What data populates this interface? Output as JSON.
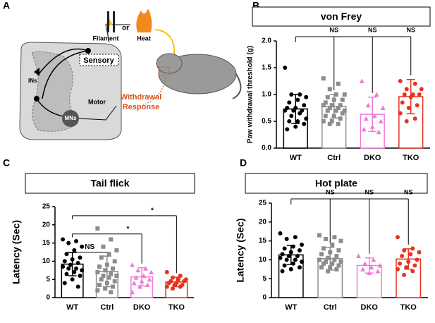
{
  "panel_a": {
    "panel": "A",
    "filament": "Filament",
    "or": "or",
    "heat": "Heat",
    "sensory": "Sensory",
    "ins": "INs",
    "mns": "MNs",
    "motor": "Motor",
    "withdrawal": "Withdrawal",
    "response": "Response"
  },
  "chart_data": [
    {
      "type": "bar",
      "panel": "B",
      "title": "von Frey",
      "ylabel": "Paw withdrawal threshold (g)",
      "categories": [
        "WT",
        "Ctrl",
        "DKO",
        "TKO"
      ],
      "colors": [
        "#000000",
        "#8c8c8c",
        "#f07ad8",
        "#e8321e"
      ],
      "markers": [
        "circle",
        "square",
        "triangle",
        "circle"
      ],
      "values": [
        0.73,
        0.78,
        0.63,
        0.96
      ],
      "errors": [
        0.27,
        0.22,
        0.32,
        0.32
      ],
      "points": [
        [
          1.5,
          1.0,
          1.0,
          0.95,
          0.9,
          0.85,
          0.8,
          0.75,
          0.75,
          0.7,
          0.7,
          0.7,
          0.65,
          0.6,
          0.55,
          0.5,
          0.5,
          0.45,
          0.4,
          0.35
        ],
        [
          1.3,
          1.2,
          1.1,
          1.0,
          1.0,
          0.95,
          0.9,
          0.9,
          0.85,
          0.8,
          0.8,
          0.8,
          0.75,
          0.75,
          0.7,
          0.7,
          0.7,
          0.65,
          0.6,
          0.6,
          0.55,
          0.5,
          0.5,
          0.45,
          0.45
        ],
        [
          1.25,
          1.0,
          0.8,
          0.75,
          0.6,
          0.55,
          0.5,
          0.4,
          0.35,
          0.3
        ],
        [
          1.25,
          1.2,
          1.1,
          1.1,
          1.0,
          1.0,
          1.0,
          0.95,
          0.85,
          0.8,
          0.75,
          0.65,
          0.55,
          0.5
        ]
      ],
      "ylim": [
        0,
        2
      ],
      "yticks": [
        {
          "value": 0,
          "label": "0.0"
        },
        0.5,
        {
          "value": 1,
          "label": "1.0"
        },
        1.5,
        {
          "value": 2,
          "label": "2.0"
        }
      ],
      "bracket_style": "shared",
      "comparisons": [
        {
          "vs": 1,
          "label": "NS"
        },
        {
          "vs": 2,
          "label": "NS"
        },
        {
          "vs": 3,
          "label": "NS"
        }
      ]
    },
    {
      "type": "bar",
      "panel": "C",
      "title": "Tail flick",
      "ylabel": "Latency (Sec)",
      "categories": [
        "WT",
        "Ctrl",
        "DKO",
        "TKO"
      ],
      "colors": [
        "#000000",
        "#8c8c8c",
        "#f07ad8",
        "#e8321e"
      ],
      "markers": [
        "circle",
        "square",
        "triangle",
        "circle"
      ],
      "values": [
        9.2,
        7.2,
        5.7,
        4.3
      ],
      "errors": [
        3.2,
        4.2,
        2.5,
        1.3
      ],
      "points": [
        [
          16,
          15.5,
          15,
          14,
          13,
          12,
          11,
          10.5,
          10,
          9.5,
          9,
          8.5,
          8,
          8,
          7.5,
          7,
          6.5,
          6,
          5,
          4,
          3
        ],
        [
          19,
          16,
          14,
          13,
          12,
          11,
          10,
          9,
          8.5,
          8,
          7.5,
          7,
          6.5,
          6,
          6,
          5.5,
          5,
          4.5,
          4,
          3.5,
          3,
          2.5,
          2,
          1.5
        ],
        [
          9,
          8,
          7.5,
          7,
          6,
          5.5,
          5,
          4.5,
          4,
          3.5,
          3,
          1.5
        ],
        [
          7,
          6,
          5.5,
          5,
          5,
          4.5,
          4.5,
          4,
          4,
          3.5,
          3.5,
          3,
          3,
          2.5
        ]
      ],
      "ylim": [
        0,
        25
      ],
      "yticks": [
        0,
        5,
        10,
        15,
        20,
        25
      ],
      "bracket_style": "nested",
      "comparisons": [
        {
          "vs": 1,
          "label": "NS"
        },
        {
          "vs": 2,
          "label": "*"
        },
        {
          "vs": 3,
          "label": "*"
        }
      ]
    },
    {
      "type": "bar",
      "panel": "D",
      "title": "Hot plate",
      "ylabel": "Latency (Sec)",
      "categories": [
        "WT",
        "Ctrl",
        "DKO",
        "TKO"
      ],
      "colors": [
        "#000000",
        "#8c8c8c",
        "#f07ad8",
        "#e8321e"
      ],
      "markers": [
        "circle",
        "square",
        "triangle",
        "circle"
      ],
      "values": [
        11.3,
        10.3,
        8.5,
        10.2
      ],
      "errors": [
        2.5,
        3.0,
        2.0,
        2.7
      ],
      "points": [
        [
          17,
          16,
          15.5,
          14,
          13.5,
          13,
          12.5,
          12,
          11.5,
          11,
          11,
          10.5,
          10,
          10,
          9.5,
          9,
          8.5,
          8,
          7.5,
          7
        ],
        [
          16.5,
          16,
          15.5,
          15,
          14,
          13,
          12.5,
          12,
          11.5,
          11,
          10.5,
          10,
          10,
          9.5,
          9.5,
          9,
          9,
          8.5,
          8,
          8,
          7.5,
          7
        ],
        [
          11,
          10,
          9,
          8.5,
          8,
          7.5,
          7,
          6.5
        ],
        [
          16,
          13,
          12.5,
          12,
          11.5,
          11,
          10,
          9.5,
          9,
          8.5,
          8,
          7.5,
          7,
          6
        ]
      ],
      "ylim": [
        0,
        25
      ],
      "yticks": [
        0,
        5,
        10,
        15,
        20,
        25
      ],
      "bracket_style": "shared",
      "comparisons": [
        {
          "vs": 1,
          "label": "NS"
        },
        {
          "vs": 2,
          "label": "NS"
        },
        {
          "vs": 3,
          "label": "NS"
        }
      ]
    }
  ]
}
